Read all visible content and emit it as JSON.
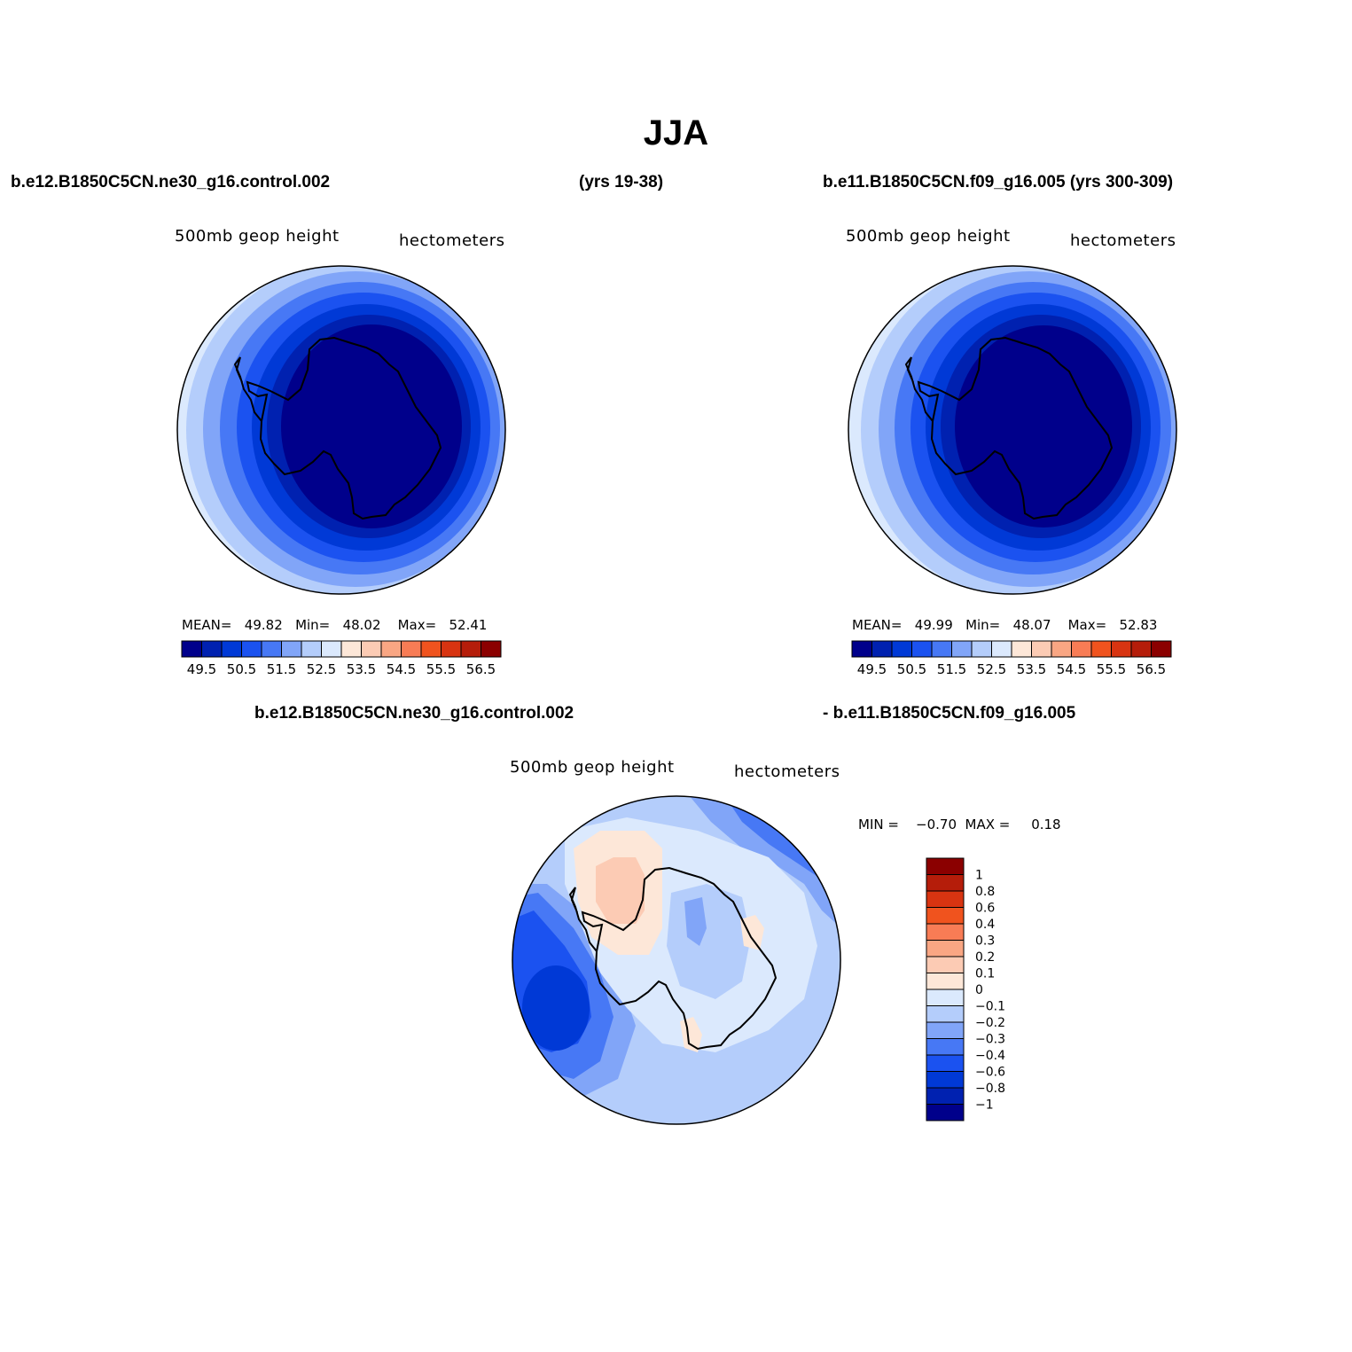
{
  "title": "JJA",
  "case1": {
    "name": "b.e12.B1850C5CN.ne30_g16.control.002",
    "years": "(yrs 19-38)"
  },
  "case2": {
    "name_years": "b.e11.B1850C5CN.f09_g16.005 (yrs 300-309)"
  },
  "diff_header": {
    "left": "b.e12.B1850C5CN.ne30_g16.control.002",
    "right": "- b.e11.B1850C5CN.f09_g16.005"
  },
  "panels": [
    {
      "variable": "500mb  geop  height",
      "units": "hectometers",
      "stats": {
        "mean_label": "MEAN=",
        "mean": "49.82",
        "min_label": "Min=",
        "min": "48.02",
        "max_label": "Max=",
        "max": "52.41"
      }
    },
    {
      "variable": "500mb  geop  height",
      "units": "hectometers",
      "stats": {
        "mean_label": "MEAN=",
        "mean": "49.99",
        "min_label": "Min=",
        "min": "48.07",
        "max_label": "Max=",
        "max": "52.83"
      }
    },
    {
      "variable": "500mb  geop  height",
      "units": "hectometers",
      "stats": {
        "min_label": "MIN =",
        "min": "−0.70",
        "max_label": "MAX =",
        "max": "0.18"
      }
    }
  ],
  "colorbar_main": {
    "colors": [
      "#00008b",
      "#0021b0",
      "#0039d6",
      "#1b52f0",
      "#4778f5",
      "#81a5f8",
      "#b4cdfb",
      "#dbe9fd",
      "#fde7d8",
      "#fccbb4",
      "#f9a683",
      "#f87c55",
      "#f0531e",
      "#d83411",
      "#b51d0a",
      "#8b0000"
    ],
    "labels": [
      "49.5",
      "50.5",
      "51.5",
      "52.5",
      "53.5",
      "54.5",
      "55.5",
      "56.5"
    ]
  },
  "colorbar_diff": {
    "colors": [
      "#8b0000",
      "#b51d0a",
      "#d83411",
      "#f0531e",
      "#f87c55",
      "#f9a683",
      "#fccbb4",
      "#fde7d8",
      "#dbe9fd",
      "#b4cdfb",
      "#81a5f8",
      "#4778f5",
      "#1b52f0",
      "#0039d6",
      "#0021b0",
      "#00008b"
    ],
    "labels": [
      "1",
      "0.8",
      "0.6",
      "0.4",
      "0.3",
      "0.2",
      "0.1",
      "0",
      "−0.1",
      "−0.2",
      "−0.3",
      "−0.4",
      "−0.6",
      "−0.8",
      "−1"
    ]
  },
  "colors": {
    "outline": "#000000",
    "coast": "#000000"
  }
}
